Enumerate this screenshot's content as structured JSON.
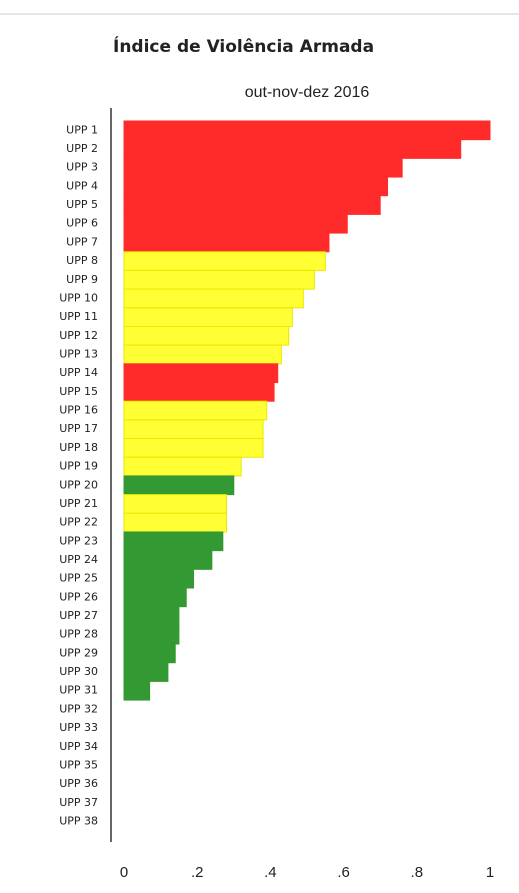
{
  "chart_data": {
    "type": "bar",
    "orientation": "horizontal",
    "title": "Índice de Violência Armada",
    "subtitle": "out-nov-dez 2016",
    "categories": [
      "UPP 1",
      "UPP 2",
      "UPP 3",
      "UPP 4",
      "UPP 5",
      "UPP 6",
      "UPP 7",
      "UPP 8",
      "UPP 9",
      "UPP 10",
      "UPP 11",
      "UPP 12",
      "UPP 13",
      "UPP 14",
      "UPP 15",
      "UPP 16",
      "UPP 17",
      "UPP 18",
      "UPP 19",
      "UPP 20",
      "UPP 21",
      "UPP 22",
      "UPP 23",
      "UPP 24",
      "UPP 25",
      "UPP 26",
      "UPP 27",
      "UPP 28",
      "UPP 29",
      "UPP 30",
      "UPP 31",
      "UPP 32",
      "UPP 33",
      "UPP 34",
      "UPP 35",
      "UPP 36",
      "UPP 37",
      "UPP 38"
    ],
    "values": [
      1.0,
      0.92,
      0.76,
      0.72,
      0.7,
      0.61,
      0.56,
      0.55,
      0.52,
      0.49,
      0.46,
      0.45,
      0.43,
      0.42,
      0.41,
      0.39,
      0.38,
      0.38,
      0.32,
      0.3,
      0.28,
      0.28,
      0.27,
      0.24,
      0.19,
      0.17,
      0.15,
      0.15,
      0.14,
      0.12,
      0.07,
      0,
      0,
      0,
      0,
      0,
      0,
      0
    ],
    "colors": [
      "#ff2a2a",
      "#ff2a2a",
      "#ff2a2a",
      "#ff2a2a",
      "#ff2a2a",
      "#ff2a2a",
      "#ff2a2a",
      "#ffff33",
      "#ffff33",
      "#ffff33",
      "#ffff33",
      "#ffff33",
      "#ffff33",
      "#ff2a2a",
      "#ff2a2a",
      "#ffff33",
      "#ffff33",
      "#ffff33",
      "#ffff33",
      "#339933",
      "#ffff33",
      "#ffff33",
      "#339933",
      "#339933",
      "#339933",
      "#339933",
      "#339933",
      "#339933",
      "#339933",
      "#339933",
      "#339933",
      "#339933",
      "#339933",
      "#339933",
      "#339933",
      "#339933",
      "#339933",
      "#339933"
    ],
    "xlim": [
      0,
      1
    ],
    "xticks": [
      0,
      {
        "value": 0.2,
        "label": ".2"
      },
      {
        "value": 0.4,
        "label": ".4"
      },
      {
        "value": 0.6,
        "label": ".6"
      },
      {
        "value": 0.8,
        "label": ".8"
      },
      1
    ]
  }
}
